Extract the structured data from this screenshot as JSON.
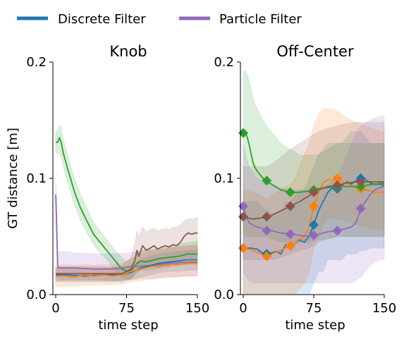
{
  "legend": [
    {
      "label": "Discrete Filter",
      "color": "#1f77b4"
    },
    {
      "label": "Particle Filter",
      "color": "#9467bd"
    }
  ],
  "chart_data": [
    {
      "type": "line",
      "title": "Knob",
      "xlabel": "time step",
      "ylabel": "GT distance [m]",
      "xlim": [
        -3,
        150
      ],
      "ylim": [
        0,
        0.2
      ],
      "xticks": [
        "0",
        "75",
        "150"
      ],
      "yticks": [
        "0.0",
        "0.1",
        "0.2"
      ],
      "series": [
        {
          "color": "#2ca02c",
          "x": [
            0,
            2,
            4,
            6,
            8,
            12,
            16,
            20,
            26,
            32,
            40,
            48,
            56,
            64,
            70,
            76,
            80,
            85,
            90,
            95,
            100,
            110,
            120,
            130,
            140,
            150
          ],
          "y": [
            0.131,
            0.131,
            0.135,
            0.13,
            0.122,
            0.11,
            0.099,
            0.088,
            0.075,
            0.065,
            0.052,
            0.044,
            0.036,
            0.028,
            0.022,
            0.02,
            0.021,
            0.026,
            0.029,
            0.028,
            0.029,
            0.031,
            0.032,
            0.033,
            0.035,
            0.035
          ],
          "band_lo": [
            0.122,
            0.121,
            0.122,
            0.118,
            0.11,
            0.098,
            0.088,
            0.077,
            0.064,
            0.055,
            0.043,
            0.035,
            0.028,
            0.02,
            0.015,
            0.013,
            0.014,
            0.018,
            0.021,
            0.021,
            0.021,
            0.023,
            0.024,
            0.025,
            0.026,
            0.026
          ],
          "band_hi": [
            0.14,
            0.141,
            0.146,
            0.142,
            0.134,
            0.122,
            0.11,
            0.1,
            0.087,
            0.076,
            0.062,
            0.054,
            0.045,
            0.037,
            0.032,
            0.028,
            0.03,
            0.034,
            0.038,
            0.038,
            0.039,
            0.04,
            0.042,
            0.043,
            0.045,
            0.046
          ]
        },
        {
          "color": "#9467bd",
          "x": [
            0,
            1,
            2,
            3,
            5,
            10,
            20,
            40,
            60,
            80,
            100,
            120,
            140,
            150
          ],
          "y": [
            0.086,
            0.06,
            0.025,
            0.023,
            0.023,
            0.023,
            0.023,
            0.022,
            0.022,
            0.024,
            0.025,
            0.027,
            0.028,
            0.028
          ],
          "band_lo": [
            0.06,
            0.04,
            0.015,
            0.013,
            0.013,
            0.013,
            0.013,
            0.013,
            0.012,
            0.013,
            0.014,
            0.015,
            0.016,
            0.016
          ],
          "band_hi": [
            0.1,
            0.08,
            0.038,
            0.037,
            0.037,
            0.037,
            0.036,
            0.035,
            0.035,
            0.036,
            0.038,
            0.04,
            0.042,
            0.043
          ]
        },
        {
          "color": "#1f77b4",
          "x": [
            0,
            10,
            30,
            50,
            70,
            80,
            90,
            100,
            110,
            120,
            130,
            140,
            150
          ],
          "y": [
            0.017,
            0.017,
            0.016,
            0.017,
            0.017,
            0.019,
            0.023,
            0.025,
            0.027,
            0.028,
            0.029,
            0.03,
            0.03
          ],
          "band_lo": [
            0.011,
            0.011,
            0.011,
            0.011,
            0.011,
            0.013,
            0.015,
            0.017,
            0.019,
            0.02,
            0.02,
            0.021,
            0.021
          ],
          "band_hi": [
            0.023,
            0.023,
            0.022,
            0.023,
            0.023,
            0.026,
            0.03,
            0.033,
            0.035,
            0.036,
            0.037,
            0.038,
            0.038
          ]
        },
        {
          "color": "#ff7f0e",
          "x": [
            0,
            10,
            20,
            30,
            40,
            50,
            60,
            70,
            80,
            90,
            100,
            110,
            120,
            130,
            140,
            150
          ],
          "y": [
            0.016,
            0.016,
            0.015,
            0.017,
            0.016,
            0.017,
            0.016,
            0.017,
            0.02,
            0.022,
            0.024,
            0.025,
            0.026,
            0.026,
            0.027,
            0.027
          ],
          "band_lo": [
            0.007,
            0.007,
            0.007,
            0.008,
            0.008,
            0.008,
            0.008,
            0.009,
            0.011,
            0.012,
            0.013,
            0.014,
            0.015,
            0.015,
            0.016,
            0.016
          ],
          "band_hi": [
            0.025,
            0.026,
            0.025,
            0.026,
            0.025,
            0.026,
            0.026,
            0.027,
            0.031,
            0.034,
            0.037,
            0.038,
            0.04,
            0.041,
            0.042,
            0.042
          ]
        },
        {
          "color": "#8c564b",
          "x": [
            0,
            10,
            20,
            30,
            40,
            50,
            60,
            70,
            80,
            84,
            86,
            88,
            92,
            96,
            100,
            104,
            108,
            112,
            116,
            120,
            124,
            128,
            132,
            136,
            140,
            144,
            148,
            150
          ],
          "y": [
            0.018,
            0.018,
            0.018,
            0.018,
            0.018,
            0.018,
            0.018,
            0.018,
            0.022,
            0.03,
            0.038,
            0.033,
            0.042,
            0.038,
            0.04,
            0.042,
            0.039,
            0.041,
            0.042,
            0.041,
            0.043,
            0.042,
            0.045,
            0.05,
            0.053,
            0.052,
            0.053,
            0.053
          ],
          "band_lo": [
            0.012,
            0.012,
            0.012,
            0.012,
            0.012,
            0.012,
            0.012,
            0.012,
            0.014,
            0.018,
            0.022,
            0.02,
            0.025,
            0.023,
            0.024,
            0.025,
            0.023,
            0.024,
            0.025,
            0.024,
            0.026,
            0.025,
            0.027,
            0.03,
            0.032,
            0.031,
            0.032,
            0.032
          ],
          "band_hi": [
            0.024,
            0.024,
            0.024,
            0.024,
            0.024,
            0.024,
            0.024,
            0.025,
            0.032,
            0.045,
            0.055,
            0.05,
            0.058,
            0.054,
            0.056,
            0.057,
            0.055,
            0.056,
            0.057,
            0.056,
            0.058,
            0.058,
            0.06,
            0.063,
            0.065,
            0.065,
            0.066,
            0.066
          ]
        }
      ]
    },
    {
      "type": "line",
      "title": "Off-Center",
      "xlabel": "time step",
      "ylabel": "",
      "xlim": [
        -3,
        150
      ],
      "ylim": [
        0,
        0.2
      ],
      "xticks": [
        "0",
        "75",
        "150"
      ],
      "yticks": [
        "0.0",
        "0.1",
        "0.2"
      ],
      "series": [
        {
          "color": "#1f77b4",
          "x": [
            0,
            8,
            15,
            20,
            25,
            30,
            35,
            40,
            45,
            50,
            55,
            60,
            65,
            70,
            75,
            80,
            85,
            90,
            95,
            100,
            105,
            110,
            115,
            120,
            125,
            130,
            135,
            140,
            145,
            150
          ],
          "y": [
            0.04,
            0.04,
            0.039,
            0.036,
            0.035,
            0.036,
            0.037,
            0.035,
            0.043,
            0.042,
            0.044,
            0.047,
            0.045,
            0.05,
            0.06,
            0.072,
            0.08,
            0.088,
            0.092,
            0.091,
            0.094,
            0.097,
            0.095,
            0.098,
            0.1,
            0.099,
            0.096,
            0.095,
            0.095,
            0.094
          ],
          "band_lo": [
            0.0,
            0.0,
            0.0,
            0.0,
            0.0,
            0.0,
            0.0,
            0.0,
            0.0,
            0.0,
            0.0,
            0.0,
            0.0,
            0.0,
            0.01,
            0.02,
            0.02,
            0.03,
            0.03,
            0.03,
            0.03,
            0.035,
            0.035,
            0.035,
            0.038,
            0.038,
            0.04,
            0.04,
            0.04,
            0.04
          ],
          "band_hi": [
            0.08,
            0.08,
            0.08,
            0.075,
            0.072,
            0.07,
            0.07,
            0.07,
            0.08,
            0.08,
            0.085,
            0.09,
            0.09,
            0.1,
            0.11,
            0.12,
            0.125,
            0.13,
            0.13,
            0.13,
            0.13,
            0.135,
            0.14,
            0.14,
            0.14,
            0.135,
            0.13,
            0.13,
            0.13,
            0.13
          ],
          "marker": "D",
          "marker_x": [
            0,
            25,
            50,
            75,
            100,
            125
          ]
        },
        {
          "color": "#ff7f0e",
          "x": [
            0,
            10,
            20,
            25,
            30,
            40,
            50,
            55,
            60,
            65,
            70,
            75,
            80,
            85,
            90,
            95,
            100,
            105,
            110,
            115,
            120,
            130,
            140,
            150
          ],
          "y": [
            0.04,
            0.038,
            0.035,
            0.033,
            0.035,
            0.038,
            0.042,
            0.044,
            0.048,
            0.05,
            0.058,
            0.076,
            0.088,
            0.096,
            0.099,
            0.098,
            0.1,
            0.097,
            0.096,
            0.093,
            0.092,
            0.09,
            0.088,
            0.088
          ],
          "band_lo": [
            0.0,
            0.0,
            0.0,
            0.0,
            0.0,
            0.0,
            0.0,
            0.0,
            0.005,
            0.01,
            0.02,
            0.04,
            0.05,
            0.06,
            0.065,
            0.065,
            0.065,
            0.065,
            0.063,
            0.062,
            0.06,
            0.058,
            0.056,
            0.056
          ],
          "band_hi": [
            0.09,
            0.088,
            0.085,
            0.082,
            0.085,
            0.09,
            0.095,
            0.1,
            0.11,
            0.12,
            0.13,
            0.145,
            0.155,
            0.16,
            0.16,
            0.16,
            0.158,
            0.155,
            0.152,
            0.15,
            0.148,
            0.145,
            0.142,
            0.14
          ],
          "marker": "D",
          "marker_x": [
            0,
            25,
            50,
            75,
            100,
            125
          ]
        },
        {
          "color": "#2ca02c",
          "x": [
            0,
            2,
            4,
            6,
            8,
            10,
            12,
            15,
            18,
            21,
            25,
            30,
            40,
            50,
            60,
            70,
            75,
            80,
            90,
            100,
            110,
            120,
            125,
            130,
            140,
            150
          ],
          "y": [
            0.139,
            0.14,
            0.136,
            0.13,
            0.122,
            0.115,
            0.11,
            0.106,
            0.103,
            0.1,
            0.098,
            0.095,
            0.09,
            0.088,
            0.088,
            0.089,
            0.09,
            0.091,
            0.092,
            0.093,
            0.093,
            0.093,
            0.093,
            0.094,
            0.095,
            0.096
          ],
          "band_lo": [
            0.05,
            0.05,
            0.05,
            0.05,
            0.05,
            0.05,
            0.05,
            0.05,
            0.05,
            0.05,
            0.05,
            0.048,
            0.045,
            0.045,
            0.045,
            0.045,
            0.046,
            0.047,
            0.048,
            0.05,
            0.05,
            0.05,
            0.05,
            0.05,
            0.05,
            0.05
          ],
          "band_hi": [
            0.19,
            0.193,
            0.19,
            0.185,
            0.178,
            0.17,
            0.165,
            0.16,
            0.155,
            0.15,
            0.145,
            0.14,
            0.13,
            0.125,
            0.12,
            0.12,
            0.12,
            0.12,
            0.125,
            0.13,
            0.13,
            0.13,
            0.13,
            0.13,
            0.13,
            0.13
          ],
          "marker": "D",
          "marker_x": [
            0,
            25,
            50,
            75,
            100,
            125
          ]
        },
        {
          "color": "#8c564b",
          "x": [
            0,
            10,
            20,
            25,
            30,
            40,
            50,
            60,
            70,
            75,
            80,
            90,
            100,
            110,
            120,
            125,
            130,
            140,
            150
          ],
          "y": [
            0.067,
            0.065,
            0.066,
            0.067,
            0.068,
            0.072,
            0.076,
            0.08,
            0.085,
            0.088,
            0.09,
            0.093,
            0.094,
            0.096,
            0.097,
            0.097,
            0.097,
            0.097,
            0.097
          ],
          "band_lo": [
            0.03,
            0.03,
            0.03,
            0.03,
            0.03,
            0.032,
            0.035,
            0.038,
            0.04,
            0.042,
            0.045,
            0.048,
            0.05,
            0.05,
            0.05,
            0.05,
            0.05,
            0.05,
            0.05
          ],
          "band_hi": [
            0.11,
            0.11,
            0.11,
            0.11,
            0.112,
            0.118,
            0.125,
            0.13,
            0.135,
            0.138,
            0.14,
            0.143,
            0.145,
            0.147,
            0.148,
            0.148,
            0.148,
            0.148,
            0.148
          ],
          "marker": "D",
          "marker_x": [
            0,
            25,
            50,
            75,
            100,
            125
          ]
        },
        {
          "color": "#9467bd",
          "x": [
            0,
            3,
            6,
            10,
            15,
            20,
            25,
            30,
            40,
            50,
            60,
            70,
            75,
            80,
            90,
            100,
            110,
            115,
            120,
            125,
            130,
            135,
            140,
            145,
            150
          ],
          "y": [
            0.076,
            0.068,
            0.062,
            0.06,
            0.058,
            0.057,
            0.055,
            0.055,
            0.053,
            0.052,
            0.051,
            0.05,
            0.051,
            0.052,
            0.054,
            0.055,
            0.057,
            0.058,
            0.062,
            0.074,
            0.08,
            0.086,
            0.09,
            0.092,
            0.093
          ],
          "band_lo": [
            0.02,
            0.015,
            0.012,
            0.01,
            0.01,
            0.01,
            0.01,
            0.01,
            0.01,
            0.01,
            0.01,
            0.01,
            0.01,
            0.01,
            0.01,
            0.01,
            0.01,
            0.01,
            0.012,
            0.015,
            0.02,
            0.025,
            0.028,
            0.03,
            0.03
          ],
          "band_hi": [
            0.13,
            0.12,
            0.11,
            0.105,
            0.1,
            0.098,
            0.095,
            0.095,
            0.092,
            0.09,
            0.09,
            0.09,
            0.09,
            0.092,
            0.095,
            0.1,
            0.12,
            0.13,
            0.14,
            0.145,
            0.148,
            0.15,
            0.152,
            0.153,
            0.154
          ],
          "marker": "D",
          "marker_x": [
            0,
            25,
            50,
            75,
            100,
            125
          ]
        }
      ]
    }
  ]
}
